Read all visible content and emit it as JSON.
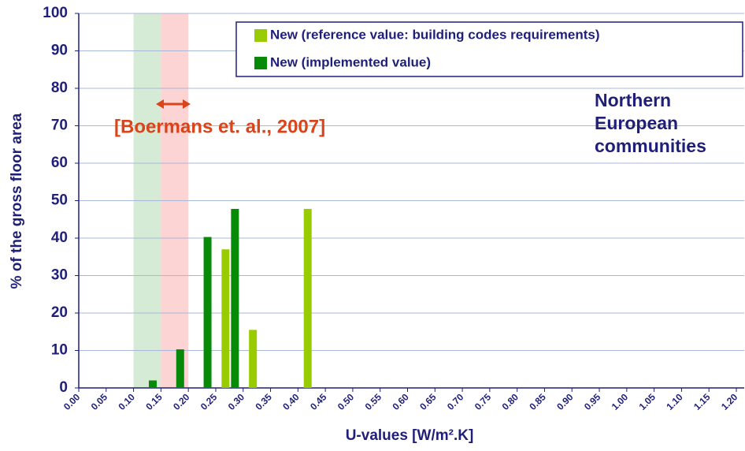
{
  "chart_data": {
    "type": "bar",
    "y_label": "% of the gross floor area",
    "x_label": "U-values [W/m².K]",
    "categories": [
      "0.00",
      "0.05",
      "0.10",
      "0.15",
      "0.20",
      "0.25",
      "0.30",
      "0.35",
      "0.40",
      "0.45",
      "0.50",
      "0.55",
      "0.60",
      "0.65",
      "0.70",
      "0.75",
      "0.80",
      "0.85",
      "0.90",
      "0.95",
      "1.00",
      "1.05",
      "1.10",
      "1.15",
      "1.20"
    ],
    "series": [
      {
        "name": "New (reference value: building codes requirements)",
        "color": "#99cc00",
        "values": [
          0,
          0,
          0,
          0,
          0,
          37,
          15.5,
          0,
          47.8,
          0,
          0,
          0,
          0,
          0,
          0,
          0,
          0,
          0,
          0,
          0,
          0,
          0,
          0,
          0,
          0
        ]
      },
      {
        "name": "New (implemented value)",
        "color": "#078a07",
        "values": [
          0,
          0,
          2,
          10.3,
          40.3,
          47.8,
          0,
          0,
          0,
          0,
          0,
          0,
          0,
          0,
          0,
          0,
          0,
          0,
          0,
          0,
          0,
          0,
          0,
          0,
          0
        ]
      }
    ],
    "highlight_ranges": [
      {
        "from": 0.1,
        "to": 0.15,
        "color": "#cfe8cf"
      },
      {
        "from": 0.15,
        "to": 0.2,
        "color": "#fbcccc"
      }
    ],
    "annotations": [
      "[Boermans et. al., 2007]",
      "Northern",
      "European",
      "communities"
    ],
    "ylim": [
      0,
      100
    ],
    "yticks": [
      0,
      10,
      20,
      30,
      40,
      50,
      60,
      70,
      80,
      90,
      100
    ],
    "grid": true,
    "legend": "top-right"
  }
}
